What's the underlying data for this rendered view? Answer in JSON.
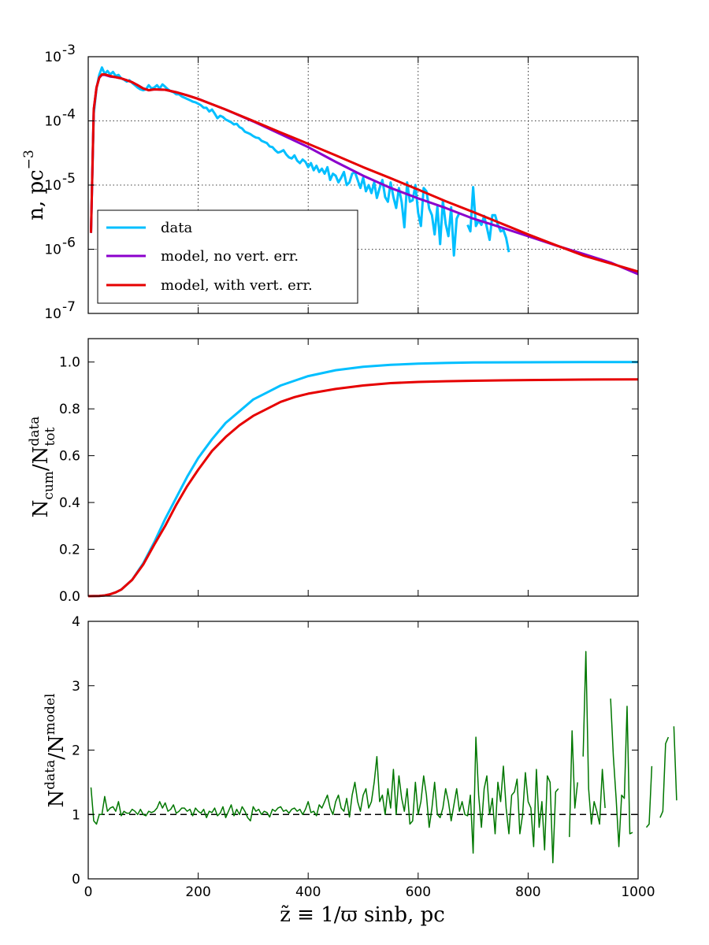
{
  "chart_data": [
    {
      "type": "line",
      "yscale": "log",
      "ylabel": "n,  pc",
      "ylabel_exp": "−3",
      "xlim": [
        0,
        1000
      ],
      "ylim_exp": [
        -7,
        -3
      ],
      "xticks": [
        200,
        400,
        600,
        800
      ],
      "yticks": [
        {
          "base": "10",
          "exp": "-3"
        },
        {
          "base": "10",
          "exp": "-4"
        },
        {
          "base": "10",
          "exp": "-5"
        },
        {
          "base": "10",
          "exp": "-6"
        },
        {
          "base": "10",
          "exp": "-7"
        }
      ],
      "grid": true,
      "legend_position": "lower-left",
      "legend": [
        "data",
        "model,  no vert. err.",
        "model,  with vert. err."
      ],
      "series": [
        {
          "name": "data",
          "color": "#00bfff",
          "x_start": 5,
          "x_step": 5,
          "values": [
            1.8e-06,
            0.00013,
            0.00032,
            0.00052,
            0.00068,
            0.00054,
            0.0006,
            0.00053,
            0.00058,
            0.0005,
            0.00052,
            0.00046,
            0.00044,
            0.00041,
            0.00043,
            0.00039,
            0.00036,
            0.00033,
            0.00031,
            0.0003,
            0.00031,
            0.00036,
            0.00032,
            0.00033,
            0.00036,
            0.00032,
            0.00037,
            0.00034,
            0.00031,
            0.00029,
            0.00028,
            0.00026,
            0.00026,
            0.00024,
            0.00023,
            0.00022,
            0.00021,
            0.0002,
            0.000195,
            0.000185,
            0.000175,
            0.00016,
            0.00016,
            0.00014,
            0.00015,
            0.00013,
            0.00011,
            0.00012,
            0.000115,
            0.000105,
            0.0001,
            9.5e-05,
            8.8e-05,
            9e-05,
            8e-05,
            7.6e-05,
            6.8e-05,
            6.5e-05,
            6.2e-05,
            5.8e-05,
            5.5e-05,
            5.4e-05,
            4.9e-05,
            4.7e-05,
            4.5e-05,
            4e-05,
            3.9e-05,
            3.5e-05,
            3.2e-05,
            3.3e-05,
            3.5e-05,
            3e-05,
            2.7e-05,
            2.6e-05,
            2.9e-05,
            2.4e-05,
            2.2e-05,
            2.5e-05,
            2.3e-05,
            1.9e-05,
            2.2e-05,
            1.7e-05,
            2e-05,
            1.6e-05,
            1.8e-05,
            1.5e-05,
            1.9e-05,
            1.2e-05,
            1.5e-05,
            1.4e-05,
            1.1e-05,
            1.3e-05,
            1.6e-05,
            1e-05,
            1.1e-05,
            1.5e-05,
            1.6e-05,
            1.2e-05,
            9e-06,
            1.3e-05,
            8e-06,
            1e-05,
            7.5e-06,
            1.1e-05,
            6.3e-06,
            9e-06,
            1.2e-05,
            6.5e-06,
            5.5e-06,
            1.1e-05,
            6.5e-06,
            4.4e-06,
            9e-06,
            5.4e-06,
            2.2e-06,
            1.1e-05,
            5.5e-06,
            5.8e-06,
            1e-05,
            3.7e-06,
            2.3e-06,
            9e-06,
            8e-06,
            4.3e-06,
            3.4e-06,
            1.7e-06,
            4.6e-06,
            1.2e-06,
            5.7e-06,
            2.5e-06,
            1.6e-06,
            4.5e-06,
            8e-07,
            3e-06,
            3.7e-06,
            null,
            null,
            2.4e-06,
            1.9e-06,
            9.3e-06,
            2.3e-06,
            2.8e-06,
            2.4e-06,
            3.3e-06,
            2.2e-06,
            1.4e-06,
            3.4e-06,
            3.4e-06,
            2.4e-06,
            1.9e-06,
            2e-06,
            1.5e-06,
            9e-07,
            null,
            null,
            null,
            null,
            null,
            null,
            null,
            null,
            null,
            null,
            null,
            null,
            null,
            null,
            null,
            null,
            null,
            null,
            null,
            null,
            null,
            null,
            null,
            null,
            null,
            null,
            null,
            null,
            null,
            null,
            null,
            null,
            null,
            null,
            null,
            null,
            null,
            null,
            null,
            null
          ]
        },
        {
          "name": "model,  no vert. err.",
          "color": "#8b00cc",
          "x": [
            5,
            10,
            15,
            20,
            25,
            30,
            40,
            50,
            60,
            70,
            80,
            90,
            100,
            110,
            120,
            140,
            160,
            180,
            200,
            250,
            300,
            350,
            400,
            450,
            500,
            550,
            600,
            650,
            700,
            750,
            800,
            850,
            900,
            950,
            1000
          ],
          "values": [
            1.8e-06,
            0.00015,
            0.00033,
            0.00047,
            0.00052,
            0.00052,
            0.00049,
            0.00048,
            0.00046,
            0.00043,
            0.0004,
            0.00036,
            0.00032,
            0.0003,
            0.00031,
            0.000305,
            0.00028,
            0.00025,
            0.00022,
            0.00015,
            9.8e-05,
            6.2e-05,
            3.9e-05,
            2.3e-05,
            1.4e-05,
            9e-06,
            6.2e-06,
            4.4e-06,
            3e-06,
            2.2e-06,
            1.6e-06,
            1.15e-06,
            8.5e-07,
            6.2e-07,
            4.1e-07
          ]
        },
        {
          "name": "model,  with vert. err.",
          "color": "#e60000",
          "x": [
            5,
            10,
            15,
            20,
            25,
            30,
            40,
            50,
            60,
            70,
            80,
            90,
            100,
            110,
            120,
            140,
            160,
            180,
            200,
            250,
            300,
            350,
            400,
            450,
            500,
            550,
            600,
            650,
            700,
            750,
            800,
            850,
            900,
            950,
            1000
          ],
          "values": [
            1.8e-06,
            0.00015,
            0.00033,
            0.00047,
            0.00053,
            0.00053,
            0.0005,
            0.00048,
            0.00046,
            0.00043,
            0.0004,
            0.00036,
            0.00032,
            0.0003,
            0.00031,
            0.000305,
            0.00028,
            0.00025,
            0.00022,
            0.00015,
            0.0001,
            6.6e-05,
            4.4e-05,
            2.9e-05,
            1.9e-05,
            1.28e-05,
            8.5e-06,
            5.6e-06,
            3.8e-06,
            2.55e-06,
            1.7e-06,
            1.16e-06,
            8e-07,
            6e-07,
            4.5e-07
          ]
        }
      ]
    },
    {
      "type": "line",
      "ylabel": "N",
      "ylabel_sub1": "cum",
      "ylabel_mid": "/N",
      "ylabel_sup2": "data",
      "ylabel_sub2": "tot",
      "xlim": [
        0,
        1000
      ],
      "ylim": [
        0,
        1.1
      ],
      "yticks": [
        "0.0",
        "0.2",
        "0.4",
        "0.6",
        "0.8",
        "1.0"
      ],
      "grid": false,
      "series": [
        {
          "name": "data cumulative",
          "color": "#00bfff",
          "x": [
            0,
            20,
            30,
            40,
            50,
            60,
            80,
            100,
            120,
            140,
            160,
            180,
            200,
            225,
            250,
            275,
            300,
            325,
            350,
            375,
            400,
            450,
            500,
            550,
            600,
            650,
            700,
            800,
            900,
            1000
          ],
          "values": [
            0,
            0.001,
            0.003,
            0.008,
            0.016,
            0.028,
            0.07,
            0.14,
            0.23,
            0.33,
            0.42,
            0.51,
            0.59,
            0.67,
            0.74,
            0.79,
            0.84,
            0.87,
            0.9,
            0.92,
            0.94,
            0.965,
            0.98,
            0.988,
            0.993,
            0.996,
            0.998,
            0.999,
            1.0,
            1.0
          ]
        },
        {
          "name": "model cumulative",
          "color": "#e60000",
          "x": [
            0,
            20,
            30,
            40,
            50,
            60,
            80,
            100,
            120,
            140,
            160,
            180,
            200,
            225,
            250,
            275,
            300,
            325,
            350,
            375,
            400,
            450,
            500,
            550,
            600,
            650,
            700,
            800,
            900,
            1000
          ],
          "values": [
            0,
            0.001,
            0.003,
            0.008,
            0.016,
            0.028,
            0.07,
            0.135,
            0.22,
            0.3,
            0.39,
            0.47,
            0.54,
            0.62,
            0.68,
            0.73,
            0.77,
            0.8,
            0.83,
            0.85,
            0.865,
            0.885,
            0.9,
            0.91,
            0.915,
            0.918,
            0.92,
            0.923,
            0.925,
            0.926
          ]
        }
      ]
    },
    {
      "type": "line",
      "ylabel": "N",
      "ylabel_sup1": "data",
      "ylabel_mid": "/N",
      "ylabel_sup2": "model",
      "xlabel": "z̃ ≡ 1/ϖ sinb,  pc",
      "xlim": [
        0,
        1000
      ],
      "ylim": [
        0,
        4
      ],
      "xticks": [
        "0",
        "200",
        "400",
        "600",
        "800",
        "1000"
      ],
      "yticks": [
        "0",
        "1",
        "2",
        "3",
        "4"
      ],
      "reference_line": 1,
      "grid": false,
      "series": [
        {
          "name": "ratio",
          "color": "#007700",
          "x_start": 5,
          "x_step": 5,
          "values": [
            1.42,
            0.9,
            0.85,
            1.0,
            1.0,
            1.28,
            1.05,
            1.1,
            1.12,
            1.05,
            1.2,
            0.98,
            1.05,
            1.02,
            1.02,
            1.08,
            1.05,
            1.0,
            1.08,
            1.0,
            0.98,
            1.05,
            1.03,
            1.05,
            1.1,
            1.2,
            1.1,
            1.18,
            1.05,
            1.08,
            1.15,
            1.02,
            1.05,
            1.1,
            1.1,
            1.05,
            1.08,
            0.98,
            1.1,
            1.05,
            1.02,
            1.08,
            0.95,
            1.05,
            1.03,
            1.1,
            0.98,
            1.02,
            1.12,
            0.95,
            1.05,
            1.15,
            0.98,
            1.08,
            1.0,
            1.12,
            1.05,
            0.95,
            0.9,
            1.12,
            1.05,
            1.08,
            1.0,
            1.05,
            1.03,
            0.96,
            1.08,
            1.05,
            1.1,
            1.12,
            1.05,
            1.07,
            1.02,
            1.08,
            1.1,
            1.05,
            1.08,
            1.0,
            1.08,
            1.2,
            1.03,
            1.05,
            0.98,
            1.15,
            1.1,
            1.2,
            1.3,
            1.1,
            1.0,
            1.2,
            1.3,
            1.1,
            1.05,
            1.25,
            0.96,
            1.3,
            1.5,
            1.2,
            1.05,
            1.3,
            1.4,
            1.1,
            1.2,
            1.5,
            1.9,
            1.2,
            1.3,
            1.0,
            1.4,
            1.1,
            1.7,
            1.0,
            1.6,
            1.25,
            1.05,
            1.4,
            0.85,
            0.9,
            1.5,
            1.0,
            1.2,
            1.6,
            1.3,
            0.8,
            1.1,
            1.5,
            1.0,
            0.95,
            1.1,
            1.4,
            1.2,
            0.9,
            1.15,
            1.4,
            1.05,
            1.2,
            1.0,
            0.98,
            1.3,
            0.4,
            2.2,
            1.3,
            0.8,
            1.4,
            1.6,
            1.0,
            1.25,
            0.7,
            1.5,
            1.2,
            1.75,
            1.1,
            0.7,
            1.3,
            1.35,
            1.55,
            0.7,
            1.0,
            1.65,
            1.2,
            1.1,
            0.5,
            1.7,
            0.8,
            1.2,
            0.45,
            1.6,
            1.5,
            0.25,
            1.35,
            1.4,
            null,
            null,
            null,
            0.65,
            2.3,
            1.1,
            1.5,
            null,
            1.9,
            3.53,
            1.4,
            0.85,
            1.2,
            1.05,
            0.85,
            1.7,
            1.1,
            null,
            2.8,
            1.9,
            1.25,
            0.5,
            1.3,
            1.25,
            2.68,
            0.7,
            0.72,
            null,
            null,
            null,
            null,
            0.8,
            0.85,
            1.75,
            null,
            null,
            0.95,
            1.05,
            2.1,
            2.2,
            null,
            2.37,
            1.22
          ]
        }
      ]
    }
  ]
}
